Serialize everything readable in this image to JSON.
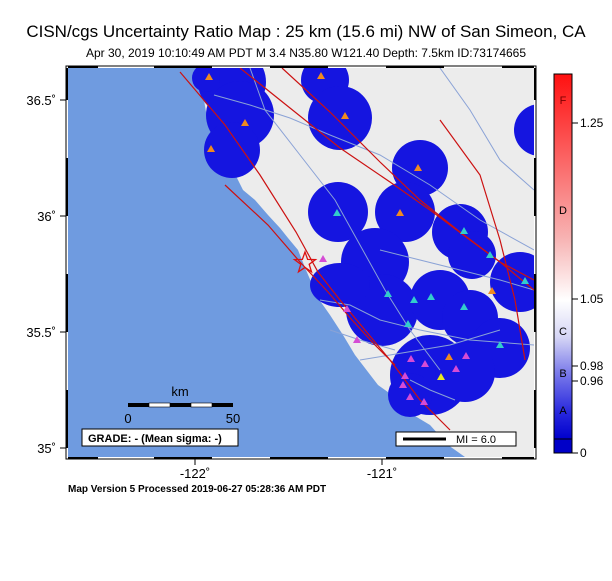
{
  "header": {
    "title": "CISN/cgs Uncertainty Ratio Map : 25 km (15.6 mi) NW of San Simeon, CA",
    "subtitle": "Apr 30, 2019 10:10:49 AM PDT   M 3.4   N35.80 W121.40   Depth: 7.5km   ID:73174665"
  },
  "axes": {
    "lat_labels": [
      "36.5˚",
      "36˚",
      "35.5˚",
      "35˚"
    ],
    "lon_labels": [
      "-122˚",
      "-121˚"
    ]
  },
  "scalebar": {
    "unit": "km",
    "min_label": "0",
    "max_label": "50"
  },
  "grade_box": {
    "text": "GRADE: - (Mean sigma: -)"
  },
  "mi_legend": {
    "text": "MI = 6.0"
  },
  "colorbar": {
    "letters": [
      "F",
      "D",
      "C",
      "B",
      "A"
    ],
    "values": [
      "1.25",
      "1.05",
      "0.98",
      "0.96",
      "0"
    ]
  },
  "footer": {
    "text": "Map Version 5 Processed 2019-06-27 05:28:36 AM PDT"
  },
  "colors": {
    "ocean": "#6f9be0",
    "land": "#ececec",
    "coverage": "#1515e0",
    "fault": "#cc1111",
    "road": "#8aa2d6"
  },
  "epicenter": {
    "lat": 35.8,
    "lon": -121.4,
    "marker": "star-icon"
  }
}
